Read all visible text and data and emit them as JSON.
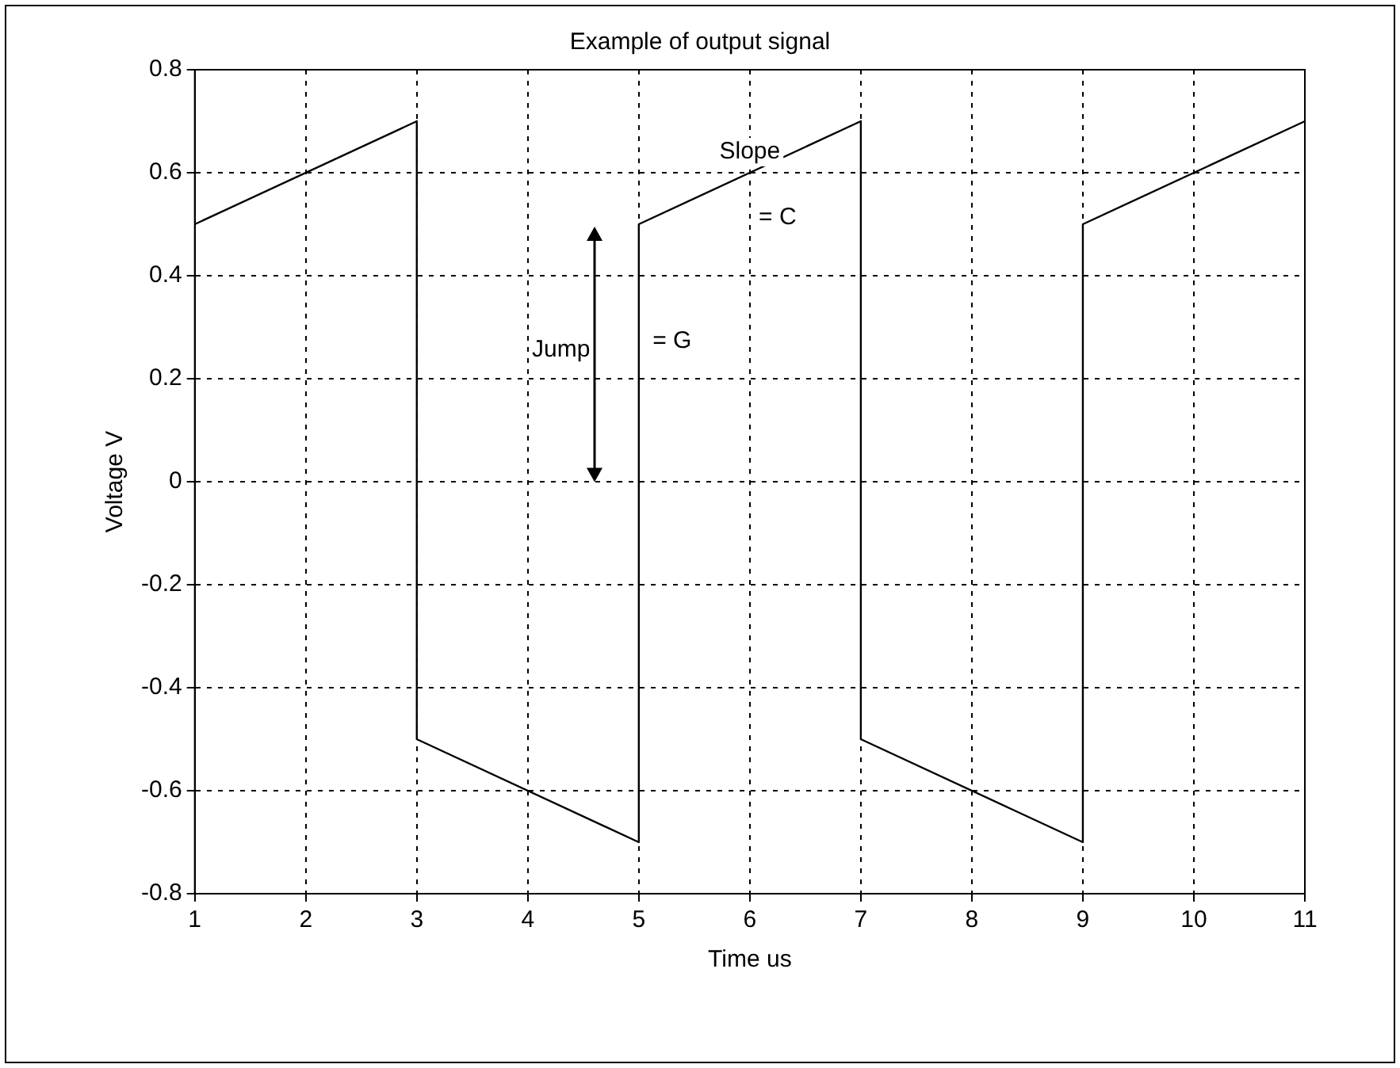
{
  "chart_data": {
    "type": "line",
    "title": "Example of output signal",
    "xlabel": "Time us",
    "ylabel": "Voltage V",
    "x": [
      1,
      3,
      3,
      5,
      5,
      7,
      7,
      9,
      9,
      11
    ],
    "series": [
      {
        "color": "#000000",
        "values": [
          0.5,
          0.7,
          -0.5,
          -0.7,
          0.5,
          0.7,
          -0.5,
          -0.7,
          0.5,
          0.7
        ]
      }
    ],
    "xlim": [
      1,
      11
    ],
    "xticks": [
      1,
      2,
      3,
      4,
      5,
      6,
      7,
      8,
      9,
      10,
      11
    ],
    "ylim": [
      -0.8,
      0.8
    ],
    "yticks": [
      -0.8,
      -0.6,
      -0.4,
      -0.2,
      0,
      0.2,
      0.4,
      0.6,
      0.8
    ],
    "annotations": [
      "Slope",
      "= C",
      "Jump",
      "= G"
    ],
    "grid": true,
    "legend": false,
    "marker": "none",
    "line_style": "solid"
  }
}
